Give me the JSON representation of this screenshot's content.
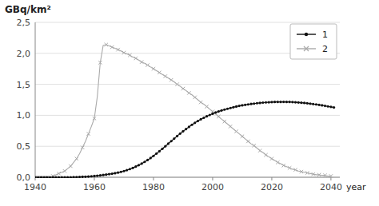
{
  "chart_data": {
    "type": "line",
    "ylabel": "GBq/km²",
    "xlabel": "year",
    "xlim": [
      1940,
      2043
    ],
    "ylim": [
      0.0,
      2.5
    ],
    "xticks": [
      1940,
      1960,
      1980,
      2000,
      2020,
      2040
    ],
    "yticks": [
      {
        "value": 0.0,
        "label": "0,0"
      },
      {
        "value": 0.5,
        "label": "0,5"
      },
      {
        "value": 1.0,
        "label": "1,0"
      },
      {
        "value": 1.5,
        "label": "1,5"
      },
      {
        "value": 2.0,
        "label": "2,0"
      },
      {
        "value": 2.5,
        "label": "2,5"
      }
    ],
    "grid": "y",
    "legend": "top-right",
    "series": [
      {
        "name": "1",
        "color": "#111111",
        "marker": "circle",
        "line_style": "solid",
        "x": [
          1940,
          1941,
          1942,
          1943,
          1944,
          1945,
          1946,
          1947,
          1948,
          1949,
          1950,
          1951,
          1952,
          1953,
          1954,
          1955,
          1956,
          1957,
          1958,
          1959,
          1960,
          1961,
          1962,
          1963,
          1964,
          1965,
          1966,
          1967,
          1968,
          1969,
          1970,
          1971,
          1972,
          1973,
          1974,
          1975,
          1976,
          1977,
          1978,
          1979,
          1980,
          1981,
          1982,
          1983,
          1984,
          1985,
          1986,
          1987,
          1988,
          1989,
          1990,
          1991,
          1992,
          1993,
          1994,
          1995,
          1996,
          1997,
          1998,
          1999,
          2000,
          2001,
          2002,
          2003,
          2004,
          2005,
          2006,
          2007,
          2008,
          2009,
          2010,
          2011,
          2012,
          2013,
          2014,
          2015,
          2016,
          2017,
          2018,
          2019,
          2020,
          2021,
          2022,
          2023,
          2024,
          2025,
          2026,
          2027,
          2028,
          2029,
          2030,
          2031,
          2032,
          2033,
          2034,
          2035,
          2036,
          2037,
          2038,
          2039,
          2040,
          2041
        ],
        "values": [
          0.0,
          0.0,
          0.0,
          0.0,
          0.0,
          0.0,
          0.0,
          0.0,
          0.0,
          0.0,
          0.0,
          0.0,
          0.0,
          0.002,
          0.003,
          0.005,
          0.007,
          0.009,
          0.012,
          0.016,
          0.02,
          0.025,
          0.03,
          0.037,
          0.043,
          0.05,
          0.057,
          0.065,
          0.075,
          0.087,
          0.1,
          0.115,
          0.132,
          0.15,
          0.172,
          0.195,
          0.22,
          0.248,
          0.278,
          0.31,
          0.345,
          0.382,
          0.42,
          0.46,
          0.5,
          0.542,
          0.583,
          0.624,
          0.665,
          0.704,
          0.742,
          0.778,
          0.813,
          0.847,
          0.878,
          0.908,
          0.935,
          0.96,
          0.983,
          1.005,
          1.025,
          1.045,
          1.062,
          1.078,
          1.092,
          1.105,
          1.118,
          1.13,
          1.142,
          1.152,
          1.161,
          1.169,
          1.176,
          1.183,
          1.189,
          1.195,
          1.2,
          1.205,
          1.208,
          1.211,
          1.213,
          1.215,
          1.216,
          1.216,
          1.217,
          1.216,
          1.215,
          1.213,
          1.21,
          1.207,
          1.203,
          1.199,
          1.194,
          1.188,
          1.182,
          1.176,
          1.169,
          1.161,
          1.153,
          1.144,
          1.136,
          1.127
        ]
      },
      {
        "name": "2",
        "color": "#aaaaaa",
        "marker": "x",
        "line_style": "solid",
        "x": [
          1940,
          1941,
          1942,
          1943,
          1944,
          1945,
          1946,
          1947,
          1948,
          1949,
          1950,
          1951,
          1952,
          1953,
          1954,
          1955,
          1956,
          1957,
          1958,
          1959,
          1960,
          1961,
          1962,
          1963,
          1964,
          1965,
          1966,
          1967,
          1968,
          1969,
          1970,
          1971,
          1972,
          1973,
          1974,
          1975,
          1976,
          1977,
          1978,
          1979,
          1980,
          1981,
          1982,
          1983,
          1984,
          1985,
          1986,
          1987,
          1988,
          1989,
          1990,
          1991,
          1992,
          1993,
          1994,
          1995,
          1996,
          1997,
          1998,
          1999,
          2000,
          2001,
          2002,
          2003,
          2004,
          2005,
          2006,
          2007,
          2008,
          2009,
          2010,
          2011,
          2012,
          2013,
          2014,
          2015,
          2016,
          2017,
          2018,
          2019,
          2020,
          2021,
          2022,
          2023,
          2024,
          2025,
          2026,
          2027,
          2028,
          2029,
          2030,
          2031,
          2032,
          2033,
          2034,
          2035,
          2036,
          2037,
          2038,
          2039,
          2040
        ],
        "values": [
          0.0,
          0.0,
          0.0,
          0.0,
          0.0,
          0.0,
          0.02,
          0.04,
          0.06,
          0.08,
          0.1,
          0.14,
          0.18,
          0.24,
          0.3,
          0.38,
          0.48,
          0.58,
          0.7,
          0.82,
          0.95,
          1.3,
          1.85,
          2.13,
          2.14,
          2.12,
          2.1,
          2.08,
          2.06,
          2.04,
          2.01,
          1.99,
          1.97,
          1.94,
          1.92,
          1.89,
          1.86,
          1.84,
          1.81,
          1.78,
          1.75,
          1.72,
          1.69,
          1.66,
          1.63,
          1.6,
          1.57,
          1.54,
          1.5,
          1.47,
          1.43,
          1.4,
          1.36,
          1.33,
          1.29,
          1.25,
          1.21,
          1.18,
          1.14,
          1.1,
          1.06,
          1.02,
          0.98,
          0.94,
          0.9,
          0.86,
          0.82,
          0.78,
          0.74,
          0.7,
          0.66,
          0.62,
          0.58,
          0.54,
          0.51,
          0.47,
          0.43,
          0.4,
          0.36,
          0.33,
          0.3,
          0.27,
          0.24,
          0.22,
          0.19,
          0.17,
          0.15,
          0.13,
          0.12,
          0.1,
          0.09,
          0.08,
          0.07,
          0.06,
          0.05,
          0.04,
          0.04,
          0.03,
          0.03,
          0.02,
          0.02
        ]
      }
    ]
  }
}
